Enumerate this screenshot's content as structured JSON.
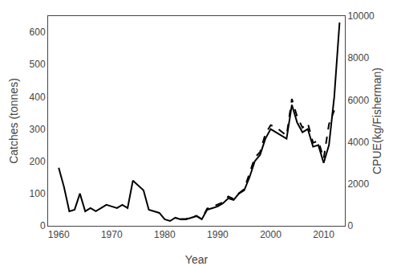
{
  "chart_data": {
    "type": "line",
    "x_label": "Year",
    "y_label": "Catches (tonnes)",
    "y2_label": "CPUE(kg/Fisherman)",
    "series": [
      {
        "x": [
          1960,
          1961,
          1962,
          1963,
          1964,
          1965,
          1966,
          1967,
          1968,
          1969,
          1970,
          1971,
          1972,
          1973,
          1974,
          1975,
          1976,
          1977,
          1978,
          1979,
          1980,
          1981,
          1982,
          1983,
          1984,
          1985,
          1986,
          1987,
          1988,
          1989,
          1990,
          1991,
          1992,
          1993,
          1994,
          1995,
          1996,
          1997,
          1998,
          1999,
          2000,
          2001,
          2002,
          2003,
          2004,
          2005,
          2006,
          2007,
          2008,
          2009,
          2010,
          2011,
          2012,
          2013
        ],
        "values": [
          180,
          120,
          45,
          50,
          100,
          45,
          55,
          45,
          55,
          65,
          60,
          55,
          65,
          55,
          140,
          125,
          110,
          50,
          45,
          40,
          20,
          15,
          25,
          20,
          20,
          25,
          30,
          20,
          50,
          55,
          60,
          70,
          85,
          80,
          100,
          110,
          150,
          200,
          220,
          270,
          300,
          290,
          280,
          270,
          375,
          320,
          290,
          300,
          245,
          250,
          195,
          250,
          400,
          630
        ],
        "color": "black",
        "line_style": "solid"
      },
      {
        "x": [
          1983,
          1984,
          1985,
          1986,
          1987,
          1988,
          1989,
          1990,
          1991,
          1992,
          1993,
          1994,
          1995,
          1996,
          1997,
          1998,
          1999,
          2000,
          2001,
          2002,
          2003,
          2004,
          2005,
          2006,
          2007,
          2008,
          2009,
          2010,
          2011,
          2012
        ],
        "values": [
          330,
          330,
          420,
          480,
          320,
          820,
          900,
          1000,
          1130,
          1400,
          1280,
          1550,
          1750,
          2500,
          3250,
          3520,
          4380,
          4800,
          4700,
          4500,
          4300,
          6050,
          5200,
          4680,
          4900,
          3960,
          4050,
          3200,
          4850,
          5500
        ],
        "color": "black",
        "line_style": "dashed",
        "axis": "y2"
      }
    ],
    "xlim": [
      1958,
      2014
    ],
    "xticks": [
      1960,
      1970,
      1980,
      1990,
      2000,
      2010
    ],
    "ylim": [
      0,
      650
    ],
    "yticks": [
      0,
      100,
      200,
      300,
      400,
      500,
      600
    ],
    "y2lim": [
      0,
      10000
    ],
    "y2ticks": [
      0,
      2000,
      4000,
      6000,
      8000,
      10000
    ],
    "grid": false
  }
}
